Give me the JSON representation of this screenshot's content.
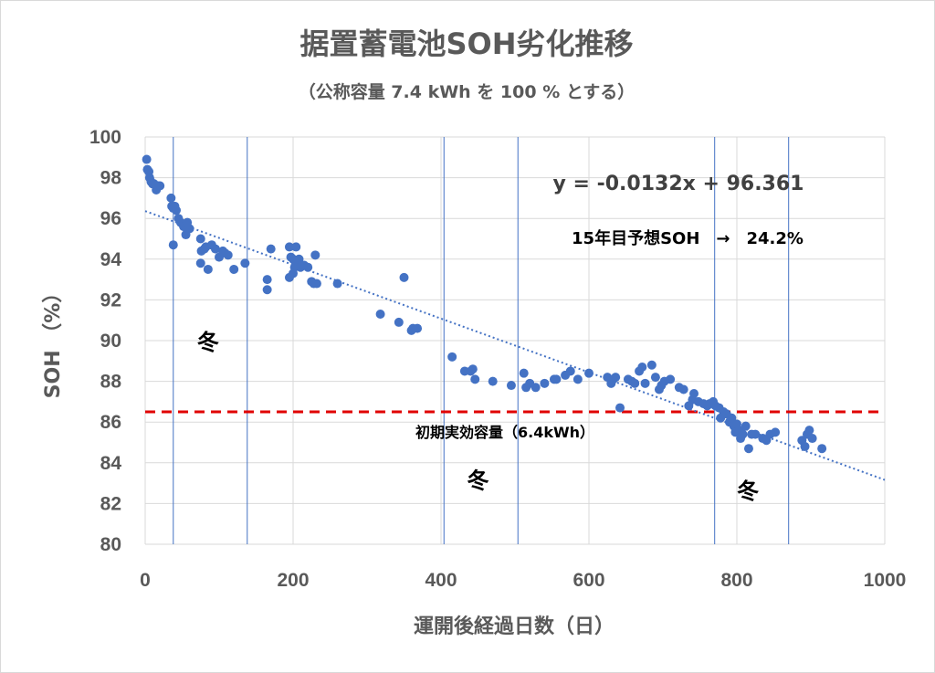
{
  "chart_data": {
    "type": "scatter",
    "title": "据置蓄電池SOH劣化推移",
    "subtitle": "（公称容量 7.4 kWh を 100 % とする）",
    "xlabel": "運開後経過日数（日）",
    "ylabel": "SOH （%）",
    "xlim": [
      0,
      1000
    ],
    "ylim": [
      80,
      100
    ],
    "x_ticks": [
      "0",
      "200",
      "400",
      "600",
      "800",
      "1000"
    ],
    "y_ticks": [
      "80",
      "82",
      "84",
      "86",
      "88",
      "90",
      "92",
      "94",
      "96",
      "98",
      "100"
    ],
    "grid": true,
    "legend": "none",
    "marker_color": "#4472c4",
    "trendline": {
      "slope": -0.0132,
      "intercept": 96.361,
      "style": "dotted",
      "color": "#4472c4"
    },
    "equation_label": "y = -0.0132x + 96.361",
    "forecast_label": "15年目予想SOH　→　24.2%",
    "reference_line": {
      "y": 86.5,
      "label": "初期実効容量（6.4kWh）",
      "color": "#e00000",
      "style": "dashed"
    },
    "season_markers": [
      {
        "x": 38,
        "label": ""
      },
      {
        "x": 138,
        "label": ""
      },
      {
        "x": 404,
        "label": ""
      },
      {
        "x": 504,
        "label": ""
      },
      {
        "x": 770,
        "label": ""
      },
      {
        "x": 870,
        "label": ""
      }
    ],
    "winter_labels": [
      {
        "x": 85,
        "y": 90.0,
        "label": "冬"
      },
      {
        "x": 450,
        "y": 83.2,
        "label": "冬"
      },
      {
        "x": 815,
        "y": 82.7,
        "label": "冬"
      }
    ],
    "points": [
      [
        2,
        98.9
      ],
      [
        3,
        98.4
      ],
      [
        5,
        98.3
      ],
      [
        6,
        98.0
      ],
      [
        8,
        97.8
      ],
      [
        10,
        97.7
      ],
      [
        12,
        97.7
      ],
      [
        15,
        97.4
      ],
      [
        18,
        97.6
      ],
      [
        20,
        97.6
      ],
      [
        35,
        97.0
      ],
      [
        36,
        96.6
      ],
      [
        38,
        96.5
      ],
      [
        40,
        96.6
      ],
      [
        42,
        96.4
      ],
      [
        45,
        96.0
      ],
      [
        48,
        95.8
      ],
      [
        52,
        95.6
      ],
      [
        55,
        95.2
      ],
      [
        57,
        95.8
      ],
      [
        60,
        95.5
      ],
      [
        38,
        94.7
      ],
      [
        75,
        95.0
      ],
      [
        76,
        94.4
      ],
      [
        75,
        93.8
      ],
      [
        80,
        94.5
      ],
      [
        82,
        94.6
      ],
      [
        85,
        93.5
      ],
      [
        90,
        94.7
      ],
      [
        95,
        94.5
      ],
      [
        100,
        94.1
      ],
      [
        105,
        94.4
      ],
      [
        108,
        94.3
      ],
      [
        112,
        94.2
      ],
      [
        120,
        93.5
      ],
      [
        135,
        93.8
      ],
      [
        165,
        92.5
      ],
      [
        165,
        93.0
      ],
      [
        170,
        94.5
      ],
      [
        195,
        94.6
      ],
      [
        197,
        94.1
      ],
      [
        200,
        94.0
      ],
      [
        202,
        93.6
      ],
      [
        204,
        94.6
      ],
      [
        206,
        93.9
      ],
      [
        208,
        94.0
      ],
      [
        210,
        93.6
      ],
      [
        195,
        93.1
      ],
      [
        200,
        93.3
      ],
      [
        215,
        93.7
      ],
      [
        220,
        93.6
      ],
      [
        225,
        92.9
      ],
      [
        228,
        92.8
      ],
      [
        230,
        94.2
      ],
      [
        232,
        92.8
      ],
      [
        260,
        92.8
      ],
      [
        318,
        91.3
      ],
      [
        343,
        90.9
      ],
      [
        350,
        93.1
      ],
      [
        360,
        90.5
      ],
      [
        362,
        90.6
      ],
      [
        368,
        90.6
      ],
      [
        415,
        89.2
      ],
      [
        432,
        88.5
      ],
      [
        440,
        88.5
      ],
      [
        443,
        88.6
      ],
      [
        446,
        88.1
      ],
      [
        470,
        88.0
      ],
      [
        495,
        87.8
      ],
      [
        512,
        88.4
      ],
      [
        515,
        87.7
      ],
      [
        520,
        87.9
      ],
      [
        528,
        87.7
      ],
      [
        540,
        87.9
      ],
      [
        553,
        88.1
      ],
      [
        556,
        88.1
      ],
      [
        568,
        88.3
      ],
      [
        575,
        88.5
      ],
      [
        585,
        88.1
      ],
      [
        600,
        88.4
      ],
      [
        625,
        88.2
      ],
      [
        630,
        87.9
      ],
      [
        633,
        88.1
      ],
      [
        636,
        88.2
      ],
      [
        642,
        86.7
      ],
      [
        653,
        88.1
      ],
      [
        658,
        88.0
      ],
      [
        662,
        87.9
      ],
      [
        668,
        88.5
      ],
      [
        672,
        88.7
      ],
      [
        676,
        87.9
      ],
      [
        685,
        88.8
      ],
      [
        690,
        88.2
      ],
      [
        695,
        87.6
      ],
      [
        698,
        87.8
      ],
      [
        702,
        88.0
      ],
      [
        710,
        88.1
      ],
      [
        722,
        87.7
      ],
      [
        728,
        87.6
      ],
      [
        735,
        86.8
      ],
      [
        740,
        87.1
      ],
      [
        742,
        87.4
      ],
      [
        748,
        87.0
      ],
      [
        755,
        86.9
      ],
      [
        760,
        86.8
      ],
      [
        763,
        86.9
      ],
      [
        768,
        87.0
      ],
      [
        771,
        86.8
      ],
      [
        776,
        86.7
      ],
      [
        778,
        86.2
      ],
      [
        782,
        86.5
      ],
      [
        786,
        86.4
      ],
      [
        790,
        86.0
      ],
      [
        793,
        86.2
      ],
      [
        796,
        85.8
      ],
      [
        798,
        85.5
      ],
      [
        800,
        85.9
      ],
      [
        803,
        85.6
      ],
      [
        805,
        85.2
      ],
      [
        808,
        85.4
      ],
      [
        812,
        85.8
      ],
      [
        816,
        84.7
      ],
      [
        820,
        85.4
      ],
      [
        825,
        85.4
      ],
      [
        835,
        85.2
      ],
      [
        840,
        85.1
      ],
      [
        845,
        85.4
      ],
      [
        852,
        85.5
      ],
      [
        888,
        85.1
      ],
      [
        892,
        84.8
      ],
      [
        895,
        85.4
      ],
      [
        898,
        85.6
      ],
      [
        902,
        85.2
      ],
      [
        915,
        84.7
      ]
    ]
  }
}
